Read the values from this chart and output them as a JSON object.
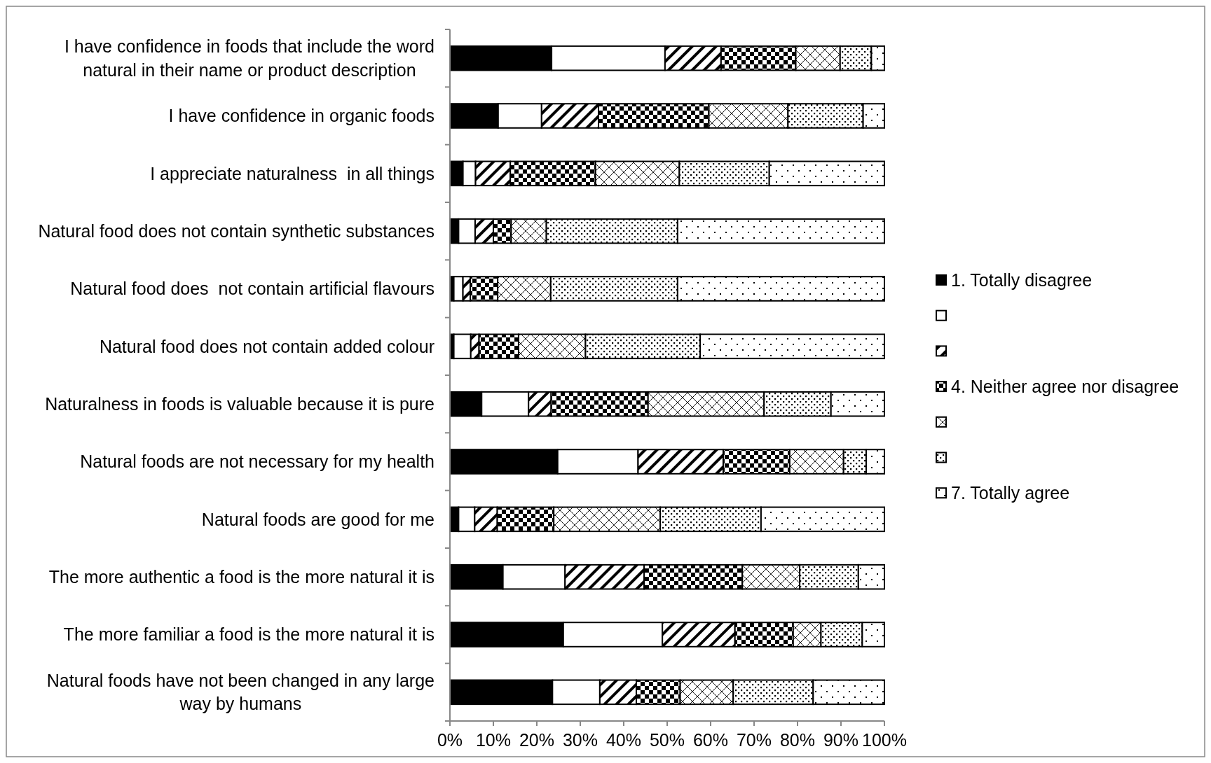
{
  "chart_data": {
    "type": "bar",
    "orientation": "horizontal",
    "stacked": true,
    "categories": [
      "I have confidence in foods that include the word natural in their name or product description",
      "I have confidence in organic foods",
      "I appreciate naturalness  in all things",
      "Natural food does not contain synthetic substances",
      "Natural food does  not contain artificial flavours",
      "Natural food does not contain added colour",
      "Naturalness in foods is valuable because it is pure",
      "Natural foods are not necessary for my health",
      "Natural foods are good for me",
      "The more authentic a food is the more natural it is",
      "The more familiar a food is the more natural it is",
      "Natural foods have not been changed in any large way by humans"
    ],
    "series": [
      {
        "name": "1. Totally disagree",
        "color": "#000000",
        "values": [
          23.4,
          11.1,
          3.0,
          2.0,
          0.9,
          0.9,
          7.3,
          24.8,
          2.0,
          12.2,
          26.1,
          23.6
        ]
      },
      {
        "color": "#ffffff",
        "values": [
          26.1,
          10.0,
          2.9,
          3.8,
          2.1,
          3.9,
          10.8,
          18.5,
          3.7,
          14.3,
          22.8,
          10.9
        ]
      },
      {
        "color": "#000000",
        "values": [
          12.9,
          13.1,
          8.0,
          4.2,
          1.7,
          1.9,
          5.2,
          19.6,
          5.2,
          18.2,
          16.7,
          8.4
        ]
      },
      {
        "name": "4. Neither agree nor disagree",
        "color": "#000000",
        "values": [
          17.2,
          25.4,
          19.6,
          4.1,
          6.3,
          9.1,
          22.3,
          15.3,
          13.0,
          22.6,
          13.4,
          10.1
        ]
      },
      {
        "color": "#000000",
        "values": [
          10.2,
          18.2,
          19.3,
          8.1,
          12.2,
          15.4,
          26.7,
          12.4,
          24.5,
          13.2,
          6.4,
          12.2
        ]
      },
      {
        "color": "#000000",
        "values": [
          7.2,
          17.3,
          20.7,
          30.2,
          29.2,
          26.4,
          15.4,
          5.2,
          23.2,
          13.5,
          9.5,
          18.4
        ]
      },
      {
        "name": "7. Totally agree",
        "color": "#000000",
        "values": [
          3.0,
          4.9,
          26.5,
          47.6,
          47.6,
          42.4,
          12.3,
          4.2,
          28.4,
          6.0,
          5.1,
          16.4
        ]
      }
    ],
    "xlim": [
      0,
      100
    ],
    "xticks": [
      {
        "value": 0,
        "label": "0%"
      },
      {
        "value": 10,
        "label": "10%"
      },
      {
        "value": 20,
        "label": "20%"
      },
      {
        "value": 30,
        "label": "30%"
      },
      {
        "value": 40,
        "label": "40%"
      },
      {
        "value": 50,
        "label": "50%"
      },
      {
        "value": 60,
        "label": "60%"
      },
      {
        "value": 70,
        "label": "70%"
      },
      {
        "value": 80,
        "label": "80%"
      },
      {
        "value": 90,
        "label": "90%"
      },
      {
        "value": 100,
        "label": "100%"
      }
    ],
    "grid": false,
    "legend": "right"
  }
}
